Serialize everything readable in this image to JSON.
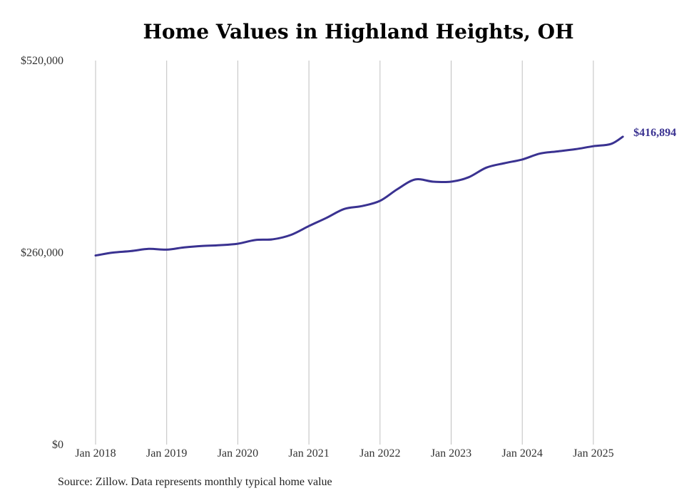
{
  "title": "Home Values in Highland Heights, OH",
  "source_note": "Source: Zillow. Data represents monthly typical home value",
  "colors": {
    "line": "#3a3291",
    "grid": "#bfbfbf",
    "text": "#333333"
  },
  "chart_data": {
    "type": "line",
    "title": "Home Values in Highland Heights, OH",
    "xlabel": "",
    "ylabel": "",
    "ylim": [
      0,
      520000
    ],
    "y_ticks": [
      {
        "value": 0,
        "label": "$0"
      },
      {
        "value": 260000,
        "label": "$260,000"
      },
      {
        "value": 520000,
        "label": "$520,000"
      }
    ],
    "x_ticks": [
      "Jan 2018",
      "Jan 2019",
      "Jan 2020",
      "Jan 2021",
      "Jan 2022",
      "Jan 2023",
      "Jan 2024",
      "Jan 2025"
    ],
    "grid": "vertical",
    "series": [
      {
        "x": [
          "2018-01",
          "2018-04",
          "2018-07",
          "2018-10",
          "2019-01",
          "2019-04",
          "2019-07",
          "2019-10",
          "2020-01",
          "2020-04",
          "2020-07",
          "2020-10",
          "2021-01",
          "2021-04",
          "2021-07",
          "2021-10",
          "2022-01",
          "2022-04",
          "2022-07",
          "2022-10",
          "2023-01",
          "2023-04",
          "2023-07",
          "2023-10",
          "2024-01",
          "2024-04",
          "2024-07",
          "2024-10",
          "2025-01",
          "2025-04",
          "2025-06"
        ],
        "values": [
          256000,
          260000,
          262000,
          265000,
          264000,
          267000,
          269000,
          270000,
          272000,
          277000,
          278000,
          284000,
          296000,
          307000,
          319000,
          323000,
          330000,
          346000,
          359000,
          356000,
          356000,
          362000,
          375000,
          381000,
          386000,
          394000,
          397000,
          400000,
          404000,
          407000,
          416894
        ],
        "end_label": "$416,894"
      }
    ]
  }
}
